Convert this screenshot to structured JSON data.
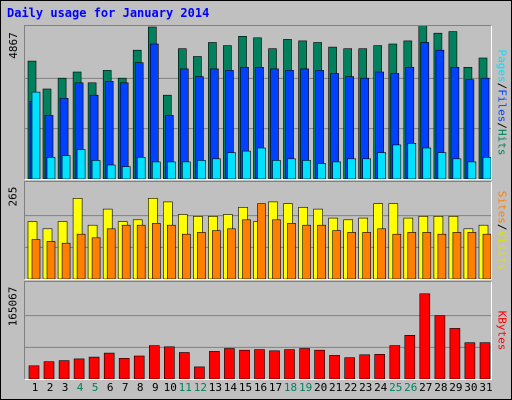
{
  "title": "Daily usage for January 2014",
  "y_max_labels": {
    "hits": "4867",
    "visits": "265",
    "kbytes": "165067"
  },
  "right_labels": {
    "top": {
      "pages": "Pages",
      "files": "Files",
      "hits": "Hits",
      "sep": "/"
    },
    "middle": {
      "sites": "Sites",
      "visits": "Visits",
      "sep": "/"
    },
    "bottom": {
      "kbytes": "KBytes"
    }
  },
  "colors": {
    "hits": "#00805c",
    "files": "#0040ff",
    "pages": "#00e0ff",
    "visits": "#ffff00",
    "sites": "#ff8000",
    "kbytes": "#ff0000"
  },
  "chart_data": {
    "type": "bar",
    "categories": [
      "1",
      "2",
      "3",
      "4",
      "5",
      "6",
      "7",
      "8",
      "9",
      "10",
      "11",
      "12",
      "13",
      "14",
      "15",
      "16",
      "17",
      "18",
      "19",
      "20",
      "21",
      "22",
      "23",
      "24",
      "25",
      "26",
      "27",
      "28",
      "29",
      "30",
      "31"
    ],
    "weekend_days": [
      "4",
      "5",
      "11",
      "12",
      "18",
      "19",
      "25",
      "26"
    ],
    "ylim": {
      "hits": [
        0,
        4867
      ],
      "visits": [
        0,
        265
      ],
      "kbytes": [
        0,
        165067
      ]
    },
    "series": [
      {
        "name": "Hits",
        "panel": "hits",
        "color": "#00805c",
        "values": [
          3800,
          2900,
          3250,
          3450,
          3100,
          3500,
          3250,
          4150,
          4900,
          2700,
          4200,
          3950,
          4400,
          4300,
          4600,
          4550,
          4200,
          4500,
          4450,
          4400,
          4250,
          4200,
          4200,
          4300,
          4350,
          4450,
          5100,
          4700,
          4750,
          3600,
          3900
        ]
      },
      {
        "name": "Files",
        "panel": "hits",
        "color": "#0040ff",
        "values": [
          2500,
          2050,
          2600,
          3100,
          2700,
          3150,
          3100,
          3750,
          4350,
          2050,
          3550,
          3300,
          3550,
          3500,
          3600,
          3600,
          3550,
          3500,
          3550,
          3500,
          3400,
          3300,
          3250,
          3450,
          3400,
          3600,
          4400,
          4150,
          3600,
          3200,
          3250
        ]
      },
      {
        "name": "Pages",
        "panel": "hits",
        "color": "#00e0ff",
        "values": [
          2800,
          700,
          750,
          950,
          600,
          450,
          400,
          700,
          550,
          550,
          550,
          600,
          650,
          850,
          900,
          1000,
          600,
          650,
          600,
          500,
          550,
          650,
          650,
          850,
          1100,
          1150,
          1000,
          850,
          650,
          550,
          700
        ]
      },
      {
        "name": "Visits",
        "panel": "visits",
        "color": "#ffff00",
        "values": [
          160,
          140,
          160,
          225,
          150,
          195,
          160,
          165,
          225,
          215,
          180,
          175,
          175,
          180,
          200,
          160,
          215,
          210,
          200,
          195,
          170,
          165,
          170,
          210,
          210,
          170,
          175,
          175,
          175,
          140,
          150
        ]
      },
      {
        "name": "Sites",
        "panel": "visits",
        "color": "#ff8000",
        "values": [
          110,
          105,
          100,
          125,
          115,
          140,
          150,
          150,
          155,
          150,
          125,
          130,
          135,
          140,
          165,
          210,
          165,
          155,
          150,
          150,
          135,
          130,
          130,
          140,
          125,
          130,
          130,
          125,
          130,
          130,
          125
        ]
      },
      {
        "name": "KBytes",
        "panel": "kbytes",
        "color": "#ff0000",
        "values": [
          23000,
          30000,
          32000,
          35000,
          38000,
          45000,
          36000,
          40000,
          58000,
          56000,
          46000,
          21000,
          48000,
          53000,
          50000,
          51000,
          49000,
          51000,
          53000,
          50000,
          41000,
          37000,
          42000,
          43000,
          58000,
          76000,
          148000,
          110000,
          88000,
          63000,
          63000
        ]
      }
    ]
  }
}
